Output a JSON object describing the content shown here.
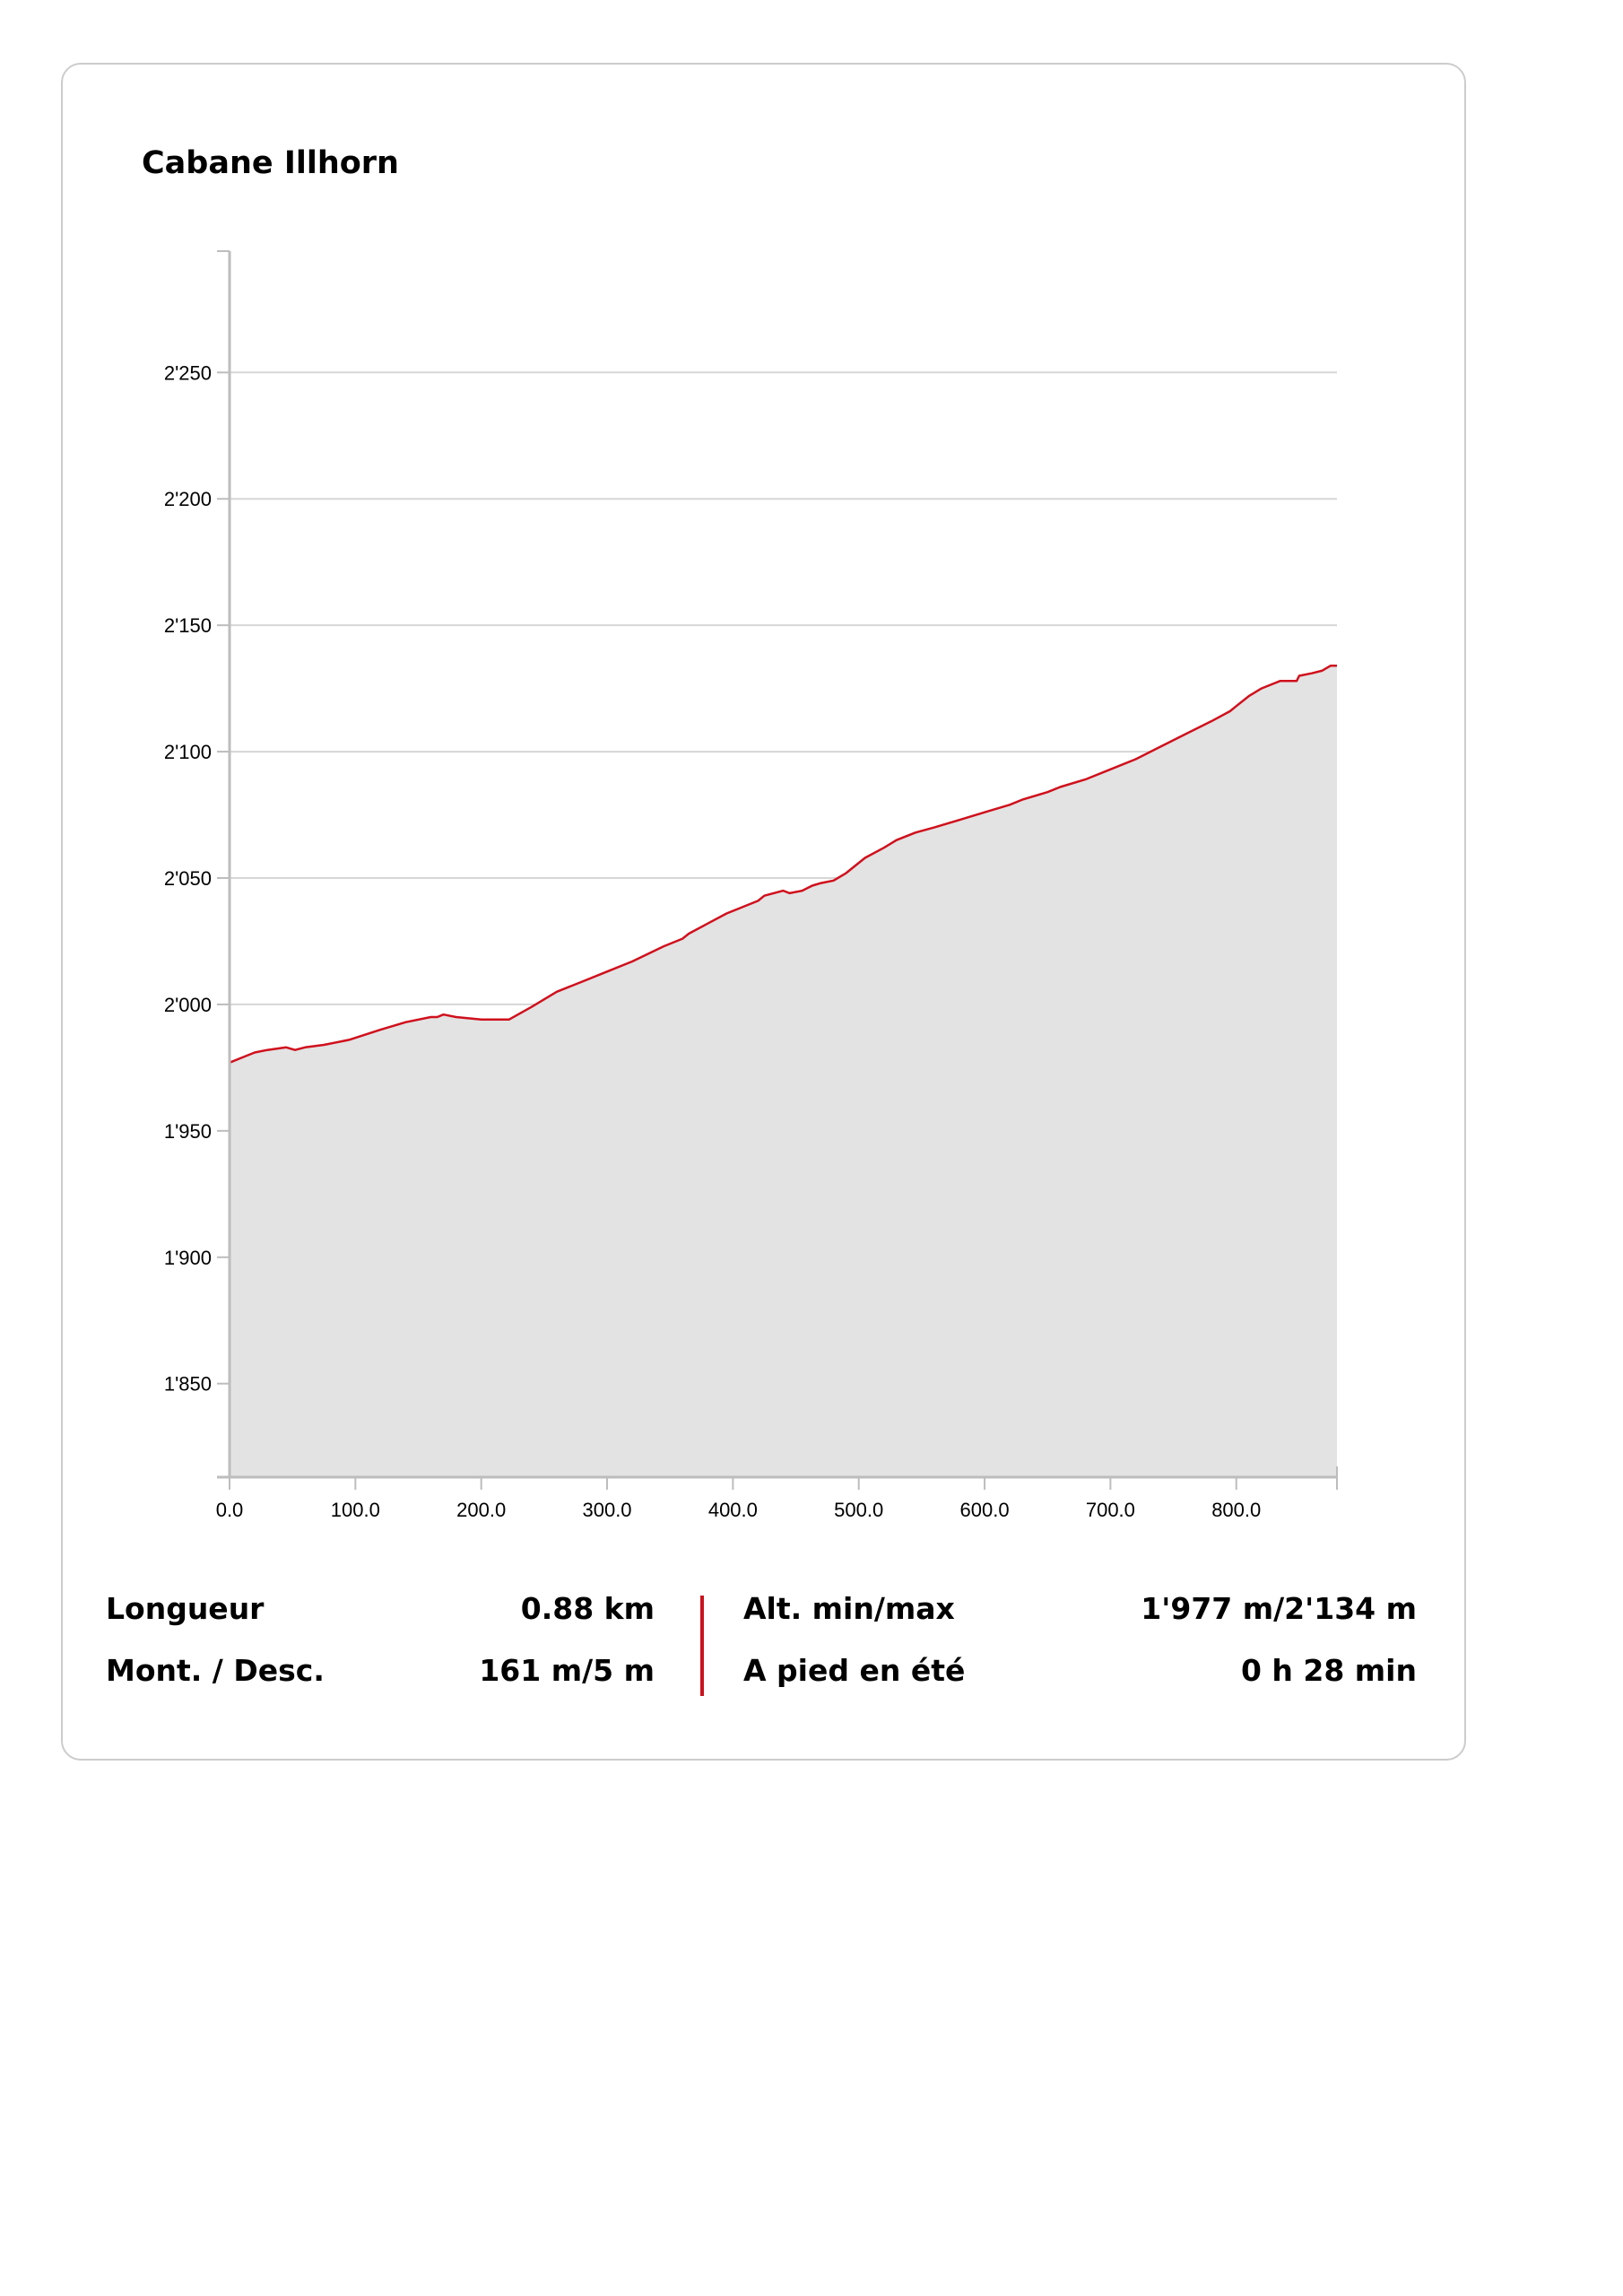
{
  "title": "Cabane Illhorn",
  "colors": {
    "profile_line": "#d0101c",
    "profile_fill": "#e3e3e3",
    "grid": "#d6d6d6",
    "axis": "#bdbdbd",
    "divider": "#c8141e"
  },
  "chart_data": {
    "type": "area",
    "title": "Cabane Illhorn",
    "xlabel": "",
    "ylabel": "",
    "xlim": [
      0,
      880
    ],
    "ylim": [
      1813,
      2298
    ],
    "grid": "horizontal",
    "x_ticks": [
      0,
      100,
      200,
      300,
      400,
      500,
      600,
      700,
      800
    ],
    "x_tick_labels": [
      "0.0",
      "100.0",
      "200.0",
      "300.0",
      "400.0",
      "500.0",
      "600.0",
      "700.0",
      "800.0"
    ],
    "y_ticks": [
      1850,
      1900,
      1950,
      2000,
      2050,
      2100,
      2150,
      2200,
      2250
    ],
    "y_tick_labels": [
      "1'850",
      "1'900",
      "1'950",
      "2'000",
      "2'050",
      "2'100",
      "2'150",
      "2'200",
      "2'250"
    ],
    "series": [
      {
        "x": [
          0,
          10,
          20,
          30,
          45,
          52,
          60,
          75,
          95,
          120,
          140,
          160,
          165,
          170,
          180,
          200,
          210,
          222,
          240,
          260,
          280,
          300,
          320,
          345,
          360,
          365,
          380,
          395,
          410,
          420,
          425,
          440,
          445,
          455,
          463,
          470,
          480,
          490,
          500,
          505,
          520,
          530,
          545,
          560,
          580,
          600,
          620,
          630,
          650,
          660,
          680,
          700,
          720,
          740,
          760,
          780,
          795,
          800,
          810,
          820,
          830,
          835,
          848,
          850,
          860,
          868,
          875,
          880
        ],
        "y": [
          1977,
          1979,
          1981,
          1982,
          1983,
          1982,
          1983,
          1984,
          1986,
          1990,
          1993,
          1995,
          1995,
          1996,
          1995,
          1994,
          1994,
          1994,
          1999,
          2005,
          2009,
          2013,
          2017,
          2023,
          2026,
          2028,
          2032,
          2036,
          2039,
          2041,
          2043,
          2045,
          2044,
          2045,
          2047,
          2048,
          2049,
          2052,
          2056,
          2058,
          2062,
          2065,
          2068,
          2070,
          2073,
          2076,
          2079,
          2081,
          2084,
          2086,
          2089,
          2093,
          2097,
          2102,
          2107,
          2112,
          2116,
          2118,
          2122,
          2125,
          2127,
          2128,
          2128,
          2130,
          2131,
          2132,
          2134,
          2134
        ]
      }
    ]
  },
  "stats": {
    "length_label": "Longueur",
    "length_value": "0.88 km",
    "ascent_label": "Mont. / Desc.",
    "ascent_value": "161 m/5 m",
    "alt_label": "Alt. min/max",
    "alt_value": "1'977 m/2'134 m",
    "time_label": "A pied en été",
    "time_value": "0 h 28 min"
  }
}
